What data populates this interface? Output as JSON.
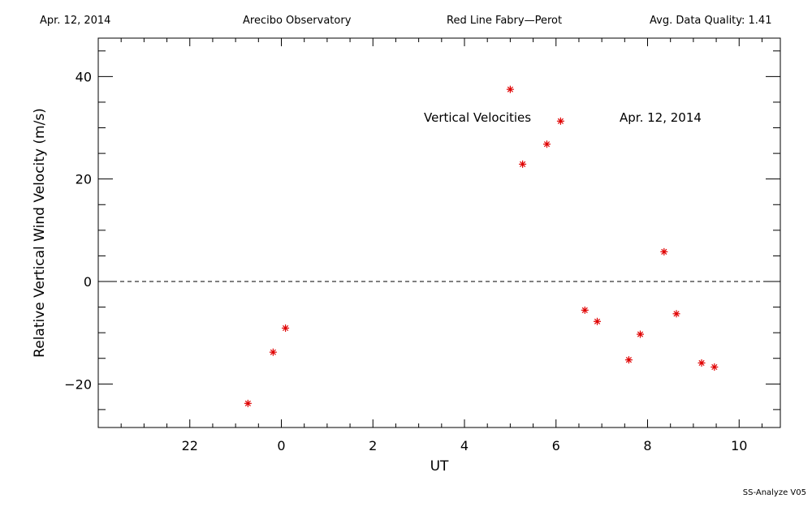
{
  "header": {
    "date": "Apr. 12, 2014",
    "site": "Arecibo Observatory",
    "instrument": "Red Line Fabry—Perot",
    "quality": "Avg. Data Quality: 1.41"
  },
  "footer": "SS-Analyze V05",
  "chart_data": {
    "type": "scatter",
    "xlabel": "UT",
    "ylabel": "Relative Vertical Wind Velocity (m/s)",
    "xlim": [
      -2.0,
      12.9
    ],
    "ylim": [
      -28.5,
      47.5
    ],
    "x_ticks": [
      {
        "value": 0.0,
        "label": "22"
      },
      {
        "value": 2.0,
        "label": "0"
      },
      {
        "value": 4.0,
        "label": "2"
      },
      {
        "value": 6.0,
        "label": "4"
      },
      {
        "value": 8.0,
        "label": "6"
      },
      {
        "value": 10.0,
        "label": "8"
      },
      {
        "value": 12.0,
        "label": "10"
      }
    ],
    "y_ticks": [
      {
        "value": -20,
        "label": "−20"
      },
      {
        "value": 0,
        "label": "0"
      },
      {
        "value": 20,
        "label": "20"
      },
      {
        "value": 40,
        "label": "40"
      }
    ],
    "annotations": [
      "Vertical Velocities",
      "Apr. 12, 2014"
    ],
    "reference_line": {
      "y": 0,
      "style": "dashed"
    },
    "marker_color": "#e00000",
    "points": [
      {
        "x": 1.27,
        "y": -23.8
      },
      {
        "x": 1.82,
        "y": -13.8
      },
      {
        "x": 2.09,
        "y": -9.1
      },
      {
        "x": 7.0,
        "y": 37.5
      },
      {
        "x": 7.27,
        "y": 22.9
      },
      {
        "x": 7.8,
        "y": 26.8
      },
      {
        "x": 8.1,
        "y": 31.3
      },
      {
        "x": 8.63,
        "y": -5.6
      },
      {
        "x": 8.9,
        "y": -7.8
      },
      {
        "x": 9.59,
        "y": -15.3
      },
      {
        "x": 9.84,
        "y": -10.3
      },
      {
        "x": 10.36,
        "y": 5.8
      },
      {
        "x": 10.63,
        "y": -6.3
      },
      {
        "x": 11.18,
        "y": -15.9
      },
      {
        "x": 11.46,
        "y": -16.7
      }
    ]
  }
}
